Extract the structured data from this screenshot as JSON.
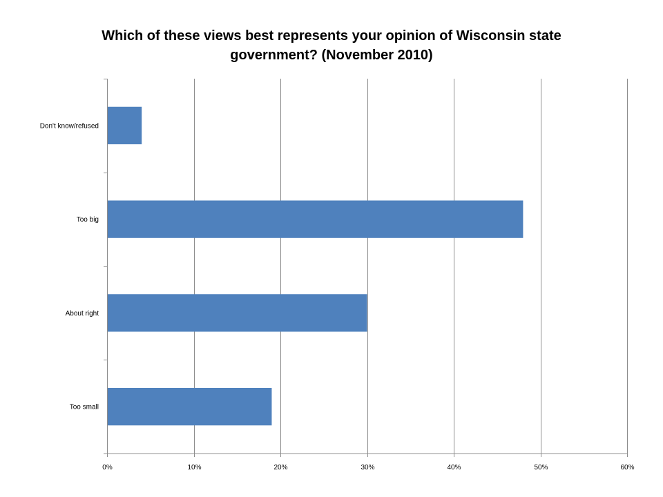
{
  "chart_data": {
    "type": "bar",
    "orientation": "horizontal",
    "title_lines": [
      "Which of these views best represents your opinion of Wisconsin state",
      "government? (November 2010)"
    ],
    "categories": [
      "Don't know/refused",
      "Too big",
      "About right",
      "Too small"
    ],
    "values": [
      0.04,
      0.48,
      0.3,
      0.19
    ],
    "xlim": [
      0,
      0.6
    ],
    "x_ticks": [
      0,
      0.1,
      0.2,
      0.3,
      0.4,
      0.5,
      0.6
    ],
    "x_tick_labels": [
      "0%",
      "10%",
      "20%",
      "30%",
      "40%",
      "50%",
      "60%"
    ],
    "xlabel": "",
    "ylabel": "",
    "grid": "vertical",
    "legend": "none",
    "bar_color": "#4f81bd"
  }
}
